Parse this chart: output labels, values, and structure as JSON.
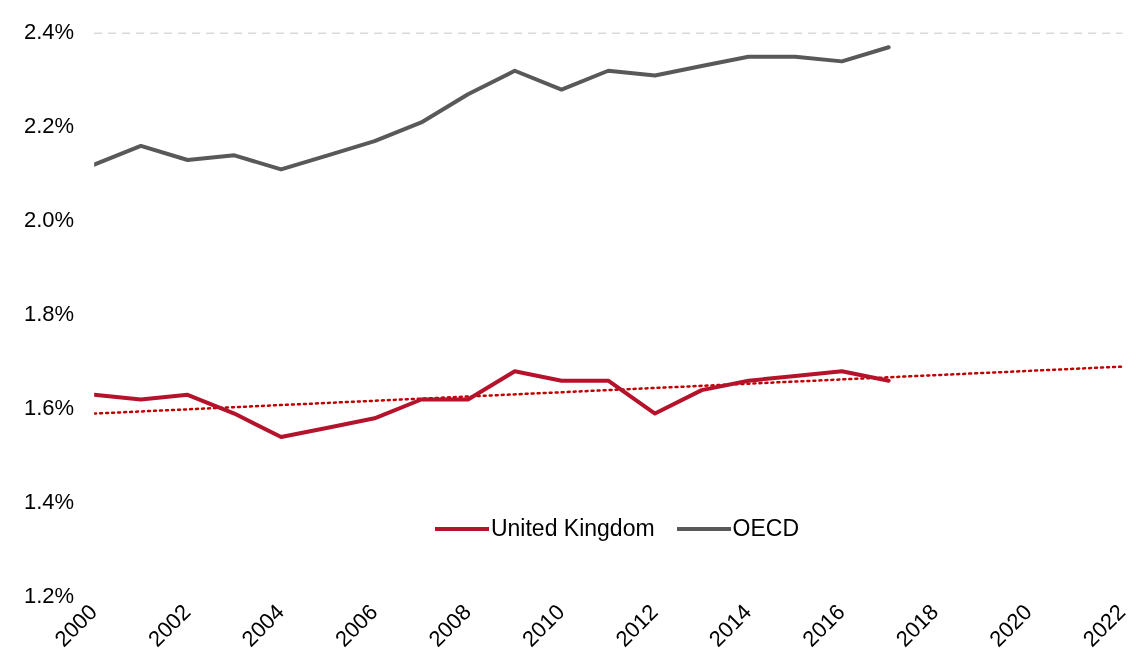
{
  "chart_data": {
    "type": "line",
    "x": [
      2000,
      2001,
      2002,
      2003,
      2004,
      2005,
      2006,
      2007,
      2008,
      2009,
      2010,
      2011,
      2012,
      2013,
      2014,
      2015,
      2016,
      2017
    ],
    "series": [
      {
        "name": "United Kingdom",
        "color": "#b5122b",
        "values": [
          1.63,
          1.62,
          1.63,
          1.59,
          1.54,
          1.56,
          1.58,
          1.62,
          1.62,
          1.68,
          1.66,
          1.66,
          1.59,
          1.64,
          1.66,
          1.67,
          1.68,
          1.66
        ]
      },
      {
        "name": "OECD",
        "color": "#595959",
        "values": [
          2.12,
          2.16,
          2.13,
          2.14,
          2.11,
          2.14,
          2.17,
          2.21,
          2.27,
          2.32,
          2.28,
          2.32,
          2.31,
          2.33,
          2.35,
          2.35,
          2.34,
          2.37
        ]
      },
      {
        "type": "line",
        "color": "#c00000",
        "line_style": "dotted",
        "x": [
          2000,
          2022
        ],
        "values": [
          1.59,
          1.69
        ]
      }
    ],
    "xlim": [
      2000,
      2022
    ],
    "xticks": [
      2000,
      2002,
      2004,
      2006,
      2008,
      2010,
      2012,
      2014,
      2016,
      2018,
      2020,
      2022
    ],
    "ylim": [
      1.2,
      2.4
    ],
    "yticks": [
      {
        "value": 1.2,
        "label": "1.2%"
      },
      {
        "value": 1.4,
        "label": "1.4%"
      },
      {
        "value": 1.6,
        "label": "1.6%"
      },
      {
        "value": 1.8,
        "label": "1.8%"
      },
      {
        "value": 2.0,
        "label": "2.0%"
      },
      {
        "value": 2.2,
        "label": "2.2%"
      },
      {
        "value": 2.4,
        "label": "2.4%"
      }
    ],
    "ref_lines": [
      {
        "axis": "y",
        "value": 2.4,
        "color": "#d9d9d9",
        "line_style": "dashed"
      }
    ],
    "grid": false,
    "legend": "bottom",
    "marker": "none",
    "line_style": "solid"
  }
}
